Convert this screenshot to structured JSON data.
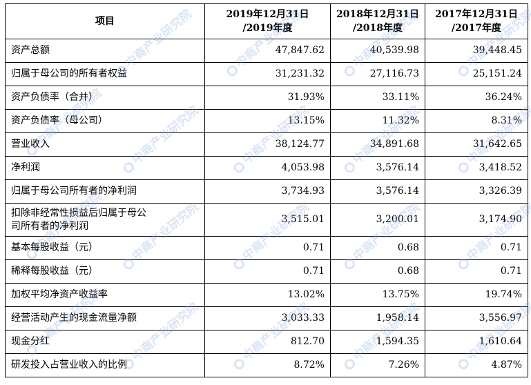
{
  "header": {
    "item": "项目",
    "col1": [
      "2019年12月31日",
      "/2019年度"
    ],
    "col2": [
      "2018年12月31日",
      "/2018年度"
    ],
    "col3": [
      "2017年12月31日",
      "/2017年度"
    ]
  },
  "rows": [
    {
      "label": "资产总额",
      "v2019": "47,847.62",
      "v2018": "40,539.98",
      "v2017": "39,448.45"
    },
    {
      "label": "归属于母公司的所有者权益",
      "v2019": "31,231.32",
      "v2018": "27,116.73",
      "v2017": "25,151.24"
    },
    {
      "label": "资产负债率（合并）",
      "v2019": "31.93%",
      "v2018": "33.11%",
      "v2017": "36.24%"
    },
    {
      "label": "资产负债率（母公司）",
      "v2019": "13.15%",
      "v2018": "11.32%",
      "v2017": "8.31%"
    },
    {
      "label": "营业收入",
      "v2019": "38,124.77",
      "v2018": "34,891.68",
      "v2017": "31,642.65"
    },
    {
      "label": "净利润",
      "v2019": "4,053.98",
      "v2018": "3,576.14",
      "v2017": "3,418.52"
    },
    {
      "label": "归属于母公司所有者的净利润",
      "v2019": "3,734.93",
      "v2018": "3,576.14",
      "v2017": "3,326.39"
    },
    {
      "label": [
        "扣除非经常性损益后归属于母公",
        "司所有者的净利润"
      ],
      "v2019": "3,515.01",
      "v2018": "3,200.01",
      "v2017": "3,174.90"
    },
    {
      "label": "基本每股收益（元）",
      "v2019": "0.71",
      "v2018": "0.68",
      "v2017": "0.71"
    },
    {
      "label": "稀释每股收益（元）",
      "v2019": "0.71",
      "v2018": "0.68",
      "v2017": "0.71"
    },
    {
      "label": "加权平均净资产收益率",
      "v2019": "13.02%",
      "v2018": "13.75%",
      "v2017": "19.74%"
    },
    {
      "label": "经营活动产生的现金流量净额",
      "v2019": "3,033.33",
      "v2018": "1,958.14",
      "v2017": "3,556.97"
    },
    {
      "label": "现金分红",
      "v2019": "812.70",
      "v2018": "1,594.35",
      "v2017": "1,610.64"
    },
    {
      "label": "研发投入占营业收入的比例",
      "v2019": "8.72%",
      "v2018": "7.26%",
      "v2017": "4.87%"
    }
  ],
  "watermark": {
    "text": "中商产业研究院",
    "color": "#78a0dc"
  }
}
